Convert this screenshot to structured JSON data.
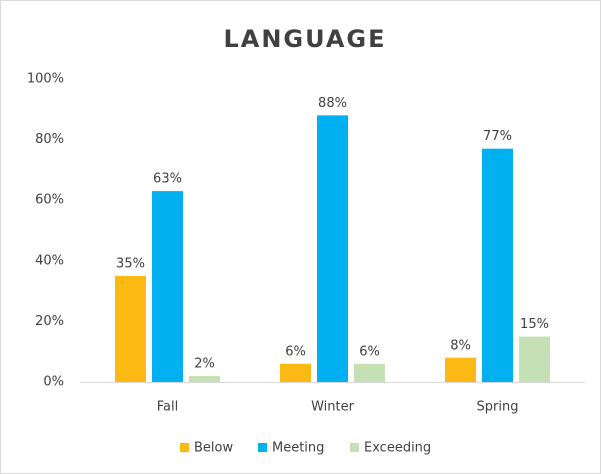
{
  "chart_data": {
    "type": "bar",
    "title": "LANGUAGE",
    "categories": [
      "Fall",
      "Winter",
      "Spring"
    ],
    "series": [
      {
        "name": "Below",
        "color": "#FDB913",
        "values": [
          35,
          6,
          8
        ],
        "value_labels": [
          "35%",
          "6%",
          "8%"
        ]
      },
      {
        "name": "Meeting",
        "color": "#00B0F0",
        "values": [
          63,
          88,
          77
        ],
        "value_labels": [
          "63%",
          "88%",
          "77%"
        ]
      },
      {
        "name": "Exceeding",
        "color": "#C5E0B4",
        "values": [
          2,
          6,
          15
        ],
        "value_labels": [
          "2%",
          "6%",
          "15%"
        ]
      }
    ],
    "ylim": [
      0,
      100
    ],
    "yticks": [
      {
        "value": 0,
        "label": "0%"
      },
      {
        "value": 20,
        "label": "20%"
      },
      {
        "value": 40,
        "label": "40%"
      },
      {
        "value": 60,
        "label": "60%"
      },
      {
        "value": 80,
        "label": "80%"
      },
      {
        "value": 100,
        "label": "100%"
      }
    ],
    "grid": false,
    "legend": "bottom"
  }
}
